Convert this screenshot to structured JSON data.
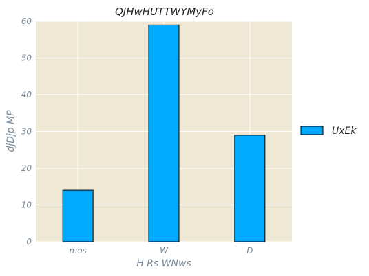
{
  "chart_data": {
    "type": "bar",
    "title": "QJHwHUTTWYMyFo",
    "xlabel": "H Rs WNws",
    "ylabel": "djDjp MP",
    "categories": [
      "mos",
      "W",
      "D"
    ],
    "series": [
      {
        "name": "UxEk",
        "values": [
          14,
          59,
          29
        ],
        "color": "#00aaff"
      }
    ],
    "ylim": [
      0,
      60
    ],
    "yticks": [
      0,
      10,
      20,
      30,
      40,
      50,
      60
    ],
    "grid": true,
    "legend_position": "right"
  },
  "colors": {
    "plot_background": "#efe8d5",
    "grid": "#ffffff",
    "bar_edge": "#000000"
  }
}
